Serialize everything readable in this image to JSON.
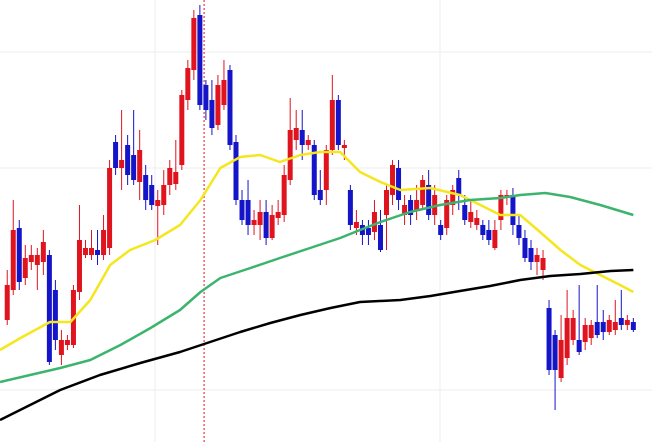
{
  "chart_data": {
    "type": "candlestick",
    "xlim": [
      -1.2,
      107.1
    ],
    "ylim": [
      0,
      442
    ],
    "up_color": "#e0141e",
    "down_color": "#1414c8",
    "marker_x": 32.7,
    "marker_color": "#e0141e",
    "x": [
      0,
      1,
      2,
      3,
      4,
      5,
      6,
      7,
      8,
      9,
      10,
      11,
      12,
      13,
      14,
      15,
      16,
      17,
      18,
      19,
      20,
      21,
      22,
      23,
      24,
      25,
      26,
      27,
      28,
      29,
      30,
      31,
      32,
      33,
      34,
      35,
      36,
      37,
      38,
      39,
      40,
      41,
      42,
      43,
      44,
      45,
      46,
      47,
      48,
      49,
      50,
      51,
      52,
      53,
      54,
      55,
      56,
      57,
      58,
      59,
      60,
      61,
      62,
      63,
      64,
      65,
      66,
      67,
      68,
      69,
      70,
      71,
      72,
      73,
      74,
      75,
      76,
      77,
      78,
      79,
      80,
      81,
      82,
      83,
      84,
      85,
      86,
      87,
      88,
      89,
      90,
      91,
      92,
      93,
      94,
      95,
      96,
      97,
      98,
      99,
      100,
      101,
      102,
      103,
      104
    ],
    "open": [
      122,
      152,
      214,
      164,
      180,
      177,
      180,
      187,
      152,
      87,
      97,
      97,
      150,
      187,
      187,
      192,
      187,
      194,
      300,
      274,
      297,
      287,
      260,
      267,
      257,
      236,
      237,
      257,
      258,
      277,
      342,
      372,
      427,
      357,
      342,
      317,
      337,
      372,
      300,
      242,
      242,
      217,
      217,
      230,
      204,
      224,
      227,
      262,
      302,
      312,
      297,
      297,
      252,
      252,
      292,
      342,
      294,
      252,
      214,
      217,
      214,
      210,
      217,
      227,
      247,
      274,
      227,
      242,
      232,
      237,
      257,
      227,
      217,
      214,
      237,
      264,
      237,
      220,
      217,
      217,
      212,
      194,
      222,
      244,
      247,
      217,
      204,
      194,
      180,
      172,
      134,
      107,
      64,
      84,
      102,
      102,
      100,
      104,
      120,
      120,
      110,
      112,
      124,
      117,
      120
    ],
    "high": [
      172,
      242,
      222,
      197,
      197,
      194,
      212,
      192,
      162,
      112,
      107,
      157,
      237,
      202,
      212,
      212,
      227,
      282,
      307,
      332,
      307,
      332,
      312,
      277,
      267,
      252,
      272,
      282,
      302,
      352,
      382,
      432,
      437,
      362,
      362,
      367,
      382,
      377,
      307,
      252,
      262,
      232,
      242,
      242,
      237,
      242,
      277,
      344,
      332,
      332,
      307,
      302,
      272,
      297,
      367,
      347,
      302,
      257,
      232,
      222,
      222,
      242,
      232,
      257,
      282,
      282,
      247,
      247,
      257,
      267,
      272,
      257,
      222,
      247,
      257,
      272,
      247,
      242,
      232,
      222,
      222,
      222,
      252,
      252,
      254,
      227,
      212,
      202,
      194,
      192,
      142,
      112,
      127,
      152,
      132,
      157,
      124,
      122,
      157,
      132,
      127,
      142,
      152,
      127,
      124
    ],
    "low": [
      117,
      147,
      152,
      157,
      172,
      152,
      167,
      77,
      92,
      77,
      92,
      94,
      142,
      184,
      182,
      177,
      182,
      187,
      267,
      252,
      257,
      257,
      242,
      232,
      232,
      197,
      227,
      247,
      252,
      272,
      332,
      362,
      332,
      322,
      307,
      312,
      332,
      292,
      237,
      217,
      207,
      207,
      202,
      197,
      202,
      217,
      220,
      257,
      292,
      282,
      292,
      242,
      237,
      237,
      287,
      292,
      282,
      212,
      207,
      197,
      197,
      202,
      190,
      192,
      237,
      232,
      217,
      217,
      222,
      232,
      222,
      217,
      202,
      207,
      227,
      232,
      217,
      214,
      212,
      202,
      197,
      192,
      212,
      237,
      207,
      197,
      180,
      172,
      167,
      162,
      67,
      32,
      60,
      77,
      97,
      87,
      92,
      97,
      104,
      102,
      107,
      107,
      112,
      112,
      110
    ],
    "close": [
      157,
      212,
      160,
      184,
      187,
      187,
      200,
      80,
      102,
      102,
      102,
      152,
      202,
      194,
      194,
      187,
      212,
      274,
      274,
      282,
      267,
      262,
      292,
      242,
      237,
      242,
      257,
      274,
      270,
      347,
      374,
      424,
      337,
      332,
      314,
      357,
      362,
      297,
      242,
      222,
      217,
      222,
      230,
      204,
      227,
      230,
      267,
      312,
      314,
      297,
      302,
      247,
      242,
      292,
      342,
      297,
      297,
      217,
      220,
      207,
      207,
      230,
      192,
      252,
      277,
      242,
      237,
      227,
      242,
      262,
      227,
      247,
      207,
      242,
      252,
      247,
      222,
      230,
      224,
      207,
      202,
      212,
      247,
      247,
      217,
      204,
      184,
      180,
      187,
      184,
      72,
      72,
      102,
      124,
      124,
      90,
      117,
      117,
      107,
      110,
      122,
      120,
      117,
      122,
      112
    ],
    "series": [
      {
        "color": "#f5e61e",
        "x": [
          -1.2,
          2.2,
          7.1,
          10.5,
          13.8,
          17.1,
          20.4,
          24.6,
          28.7,
          32.1,
          35.4,
          38.7,
          42.0,
          45.3,
          48.7,
          52.0,
          55.3,
          58.6,
          62.0,
          65.3,
          70.3,
          75.2,
          78.6,
          81.9,
          85.2,
          88.5,
          91.9,
          95.2,
          98.5,
          101.8,
          104
        ],
        "values": [
          92,
          104,
          120,
          120,
          142,
          177,
          192,
          202,
          217,
          242,
          274,
          285,
          287,
          280,
          287,
          290,
          290,
          270,
          260,
          252,
          254,
          247,
          237,
          227,
          227,
          210,
          192,
          177,
          167,
          157,
          150
        ]
      },
      {
        "color": "#3cb46e",
        "x": [
          -1.2,
          3.8,
          8.8,
          13.8,
          18.8,
          23.8,
          28.7,
          32.1,
          35.4,
          40.4,
          45.3,
          50.3,
          55.3,
          58.6,
          62.0,
          66.9,
          71.9,
          76.9,
          81.9,
          85.2,
          89.4,
          93.5,
          98.5,
          104
        ],
        "values": [
          60,
          67,
          74,
          82,
          97,
          114,
          132,
          150,
          164,
          174,
          184,
          194,
          204,
          212,
          220,
          230,
          237,
          242,
          244,
          247,
          249,
          245,
          237,
          227
        ]
      },
      {
        "color": "#000000",
        "x": [
          -1.2,
          3.8,
          8.8,
          15.4,
          22.1,
          28.7,
          33.7,
          38.7,
          43.7,
          48.7,
          53.7,
          58.6,
          65.3,
          70.3,
          75.2,
          80.2,
          85.2,
          90.2,
          95.2,
          100.2,
          104
        ],
        "values": [
          22,
          37,
          52,
          67,
          79,
          90,
          100,
          110,
          119,
          127,
          134,
          140,
          142,
          146,
          151,
          156,
          162,
          166,
          168,
          171,
          172
        ]
      }
    ]
  }
}
